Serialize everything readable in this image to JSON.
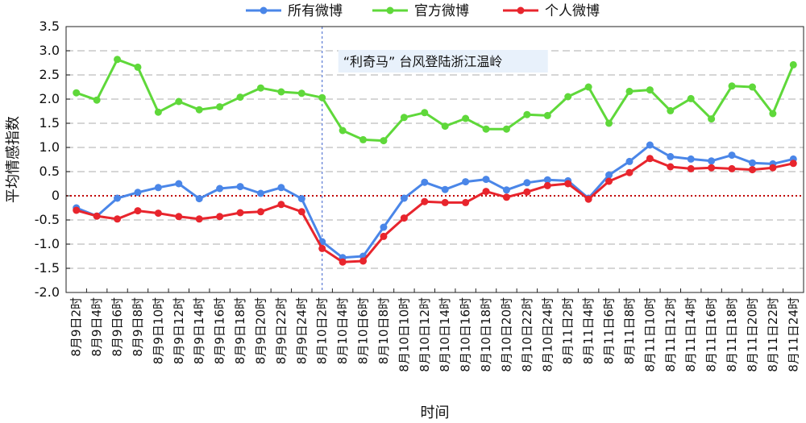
{
  "chart_data": {
    "type": "line",
    "xlabel": "时间",
    "ylabel": "平均情感指数",
    "ylim": [
      -2.0,
      3.5
    ],
    "yticks": [
      "3.5",
      "3.0",
      "2.5",
      "2.0",
      "1.5",
      "1.0",
      "0.5",
      "0",
      "-0.5",
      "-1.0",
      "-1.5",
      "-2.0"
    ],
    "categories": [
      "8月9日2时",
      "8月9日4时",
      "8月9日6时",
      "8月9日8时",
      "8月9日10时",
      "8月9日12时",
      "8月9日14时",
      "8月9日16时",
      "8月9日18时",
      "8月9日20时",
      "8月9日22时",
      "8月9日24时",
      "8月10日2时",
      "8月10日4时",
      "8月10日6时",
      "8月10日8时",
      "8月10日10时",
      "8月10日12时",
      "8月10日14时",
      "8月10日16时",
      "8月10日18时",
      "8月10日20时",
      "8月10日22时",
      "8月10日24时",
      "8月11日2时",
      "8月11日4时",
      "8月11日6时",
      "8月11日8时",
      "8月11日10时",
      "8月11日12时",
      "8月11日14时",
      "8月11日16时",
      "8月11日18时",
      "8月11日20时",
      "8月11日22时",
      "8月11日24时"
    ],
    "series": [
      {
        "name": "所有微博",
        "color": "#4a86e8",
        "values": [
          -0.25,
          -0.42,
          -0.05,
          0.07,
          0.17,
          0.25,
          -0.06,
          0.15,
          0.19,
          0.05,
          0.17,
          -0.06,
          -0.95,
          -1.28,
          -1.25,
          -0.65,
          -0.05,
          0.28,
          0.13,
          0.29,
          0.34,
          0.12,
          0.27,
          0.33,
          0.31,
          -0.05,
          0.43,
          0.71,
          1.05,
          0.81,
          0.76,
          0.72,
          0.84,
          0.68,
          0.66,
          0.76
        ]
      },
      {
        "name": "官方微博",
        "color": "#5fd83a",
        "values": [
          2.13,
          1.98,
          2.82,
          2.66,
          1.73,
          1.95,
          1.78,
          1.84,
          2.04,
          2.23,
          2.15,
          2.12,
          2.03,
          1.35,
          1.16,
          1.14,
          1.62,
          1.72,
          1.44,
          1.6,
          1.38,
          1.38,
          1.68,
          1.66,
          2.05,
          2.25,
          1.5,
          2.16,
          2.19,
          1.76,
          2.01,
          1.59,
          2.27,
          2.25,
          1.7,
          2.71
        ]
      },
      {
        "name": "个人微博",
        "color": "#e8252d",
        "values": [
          -0.3,
          -0.42,
          -0.48,
          -0.31,
          -0.36,
          -0.43,
          -0.48,
          -0.43,
          -0.35,
          -0.33,
          -0.18,
          -0.33,
          -1.09,
          -1.37,
          -1.35,
          -0.84,
          -0.46,
          -0.12,
          -0.14,
          -0.14,
          0.09,
          -0.03,
          0.08,
          0.21,
          0.25,
          -0.07,
          0.3,
          0.48,
          0.77,
          0.6,
          0.56,
          0.58,
          0.56,
          0.54,
          0.58,
          0.67
        ]
      }
    ],
    "annotation": {
      "text": "“利奇马” 台风登陆浙江温岭",
      "at_category": "8月10日2时"
    },
    "zero_line_color": "#c00000",
    "grid": "horizontal dashed",
    "legend_position": "top-center"
  }
}
